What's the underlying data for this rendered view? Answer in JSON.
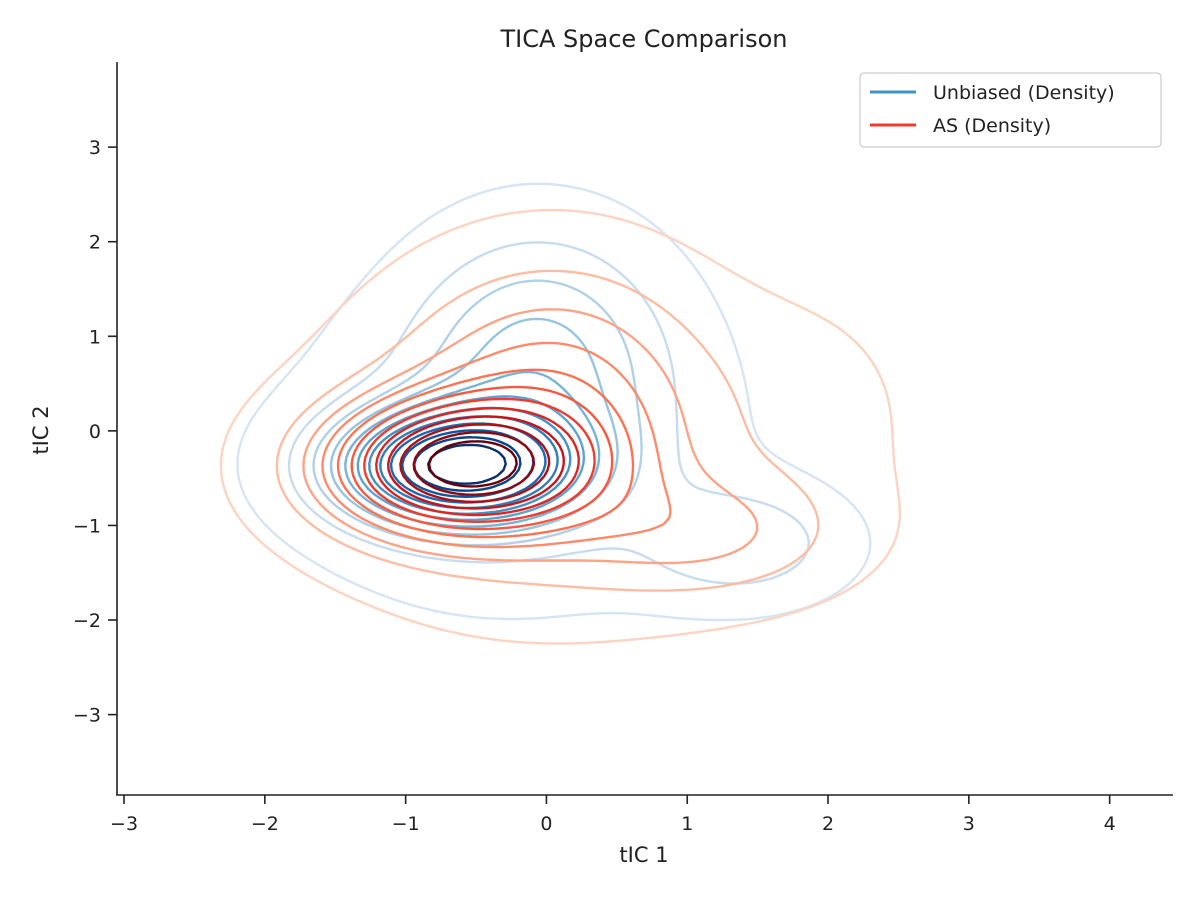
{
  "chart_data": {
    "type": "contour",
    "title": "TICA Space Comparison",
    "xlabel": "tIC 1",
    "ylabel": "tIC 2",
    "xlim": [
      -3.05,
      4.45
    ],
    "ylim": [
      -3.85,
      3.9
    ],
    "xticks": [
      -3,
      -2,
      -1,
      0,
      1,
      2,
      3,
      4
    ],
    "xtick_labels": [
      "−3",
      "−2",
      "−1",
      "0",
      "1",
      "2",
      "3",
      "4"
    ],
    "yticks": [
      -3,
      -2,
      -1,
      0,
      1,
      2,
      3
    ],
    "ytick_labels": [
      "−3",
      "−2",
      "−1",
      "0",
      "1",
      "2",
      "3"
    ],
    "grid": false,
    "legend": {
      "placement": "top-right"
    },
    "series": [
      {
        "name": "Unbiased (Density)",
        "color": "#4292c6",
        "colormap": "Blues",
        "levels": 12,
        "components": [
          {
            "mx": -0.62,
            "my": -0.38,
            "sx": 0.55,
            "sy": 0.4,
            "w": 1.0
          },
          {
            "mx": -0.05,
            "my": 0.8,
            "sx": 0.6,
            "sy": 0.9,
            "w": 0.3
          },
          {
            "mx": 1.4,
            "my": -1.2,
            "sx": 0.5,
            "sy": 0.42,
            "w": 0.2
          },
          {
            "mx": -0.3,
            "my": -0.25,
            "sx": 1.0,
            "sy": 1.05,
            "w": 0.16
          }
        ]
      },
      {
        "name": "AS (Density)",
        "color": "#ef3b2c",
        "colormap": "Reds",
        "levels": 12,
        "components": [
          {
            "mx": -0.62,
            "my": -0.38,
            "sx": 0.6,
            "sy": 0.46,
            "w": 1.0
          },
          {
            "mx": 0.05,
            "my": 0.35,
            "sx": 0.7,
            "sy": 0.95,
            "w": 0.32
          },
          {
            "mx": 1.15,
            "my": -1.1,
            "sx": 0.65,
            "sy": 0.45,
            "w": 0.2
          },
          {
            "mx": -0.1,
            "my": -0.35,
            "sx": 1.2,
            "sy": 1.15,
            "w": 0.14
          },
          {
            "mx": 1.9,
            "my": 0.2,
            "sx": 0.55,
            "sy": 0.9,
            "w": 0.05
          }
        ]
      }
    ]
  }
}
